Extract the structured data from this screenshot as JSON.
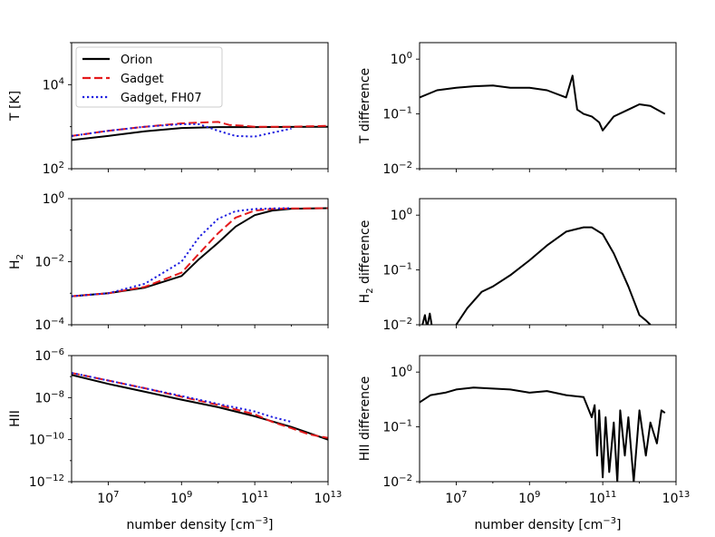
{
  "chart_data": [
    {
      "type": "line",
      "panel": "top-left",
      "ylabel": "T [K]",
      "xscale": "log",
      "yscale": "log",
      "xlim": [
        1000000.0,
        10000000000000.0
      ],
      "ylim": [
        100,
        100000
      ],
      "yticks": [
        100,
        10000
      ],
      "ytick_labels": [
        {
          "base": "10",
          "exp": "2"
        },
        {
          "base": "10",
          "exp": "4"
        }
      ],
      "xticks": [
        10000000.0,
        1000000000.0,
        100000000000.0,
        10000000000000.0
      ],
      "show_xticklabels": false,
      "legend": {
        "position": "top-left",
        "entries": [
          {
            "label": "Orion",
            "color": "#000000",
            "style": "solid"
          },
          {
            "label": "Gadget",
            "color": "#e41a1c",
            "style": "dashed"
          },
          {
            "label": "Gadget, FH07",
            "color": "#1f1fe0",
            "style": "dotted"
          }
        ]
      },
      "series": [
        {
          "name": "Orion",
          "color": "#000000",
          "style": "solid",
          "x": [
            1000000.0,
            10000000.0,
            100000000.0,
            1000000000.0,
            10000000000.0,
            100000000000.0,
            1000000000000.0,
            10000000000000.0
          ],
          "y": [
            480,
            600,
            780,
            930,
            980,
            980,
            990,
            1000
          ]
        },
        {
          "name": "Gadget",
          "color": "#e41a1c",
          "style": "dashed",
          "x": [
            1000000.0,
            10000000.0,
            100000000.0,
            1000000000.0,
            3000000000.0,
            10000000000.0,
            20000000000.0,
            50000000000.0,
            100000000000.0,
            1000000000000.0,
            10000000000000.0
          ],
          "y": [
            600,
            800,
            1000,
            1200,
            1250,
            1300,
            1100,
            1050,
            1000,
            1000,
            1050
          ]
        },
        {
          "name": "Gadget, FH07",
          "color": "#1f1fe0",
          "style": "dotted",
          "x": [
            1000000.0,
            10000000.0,
            100000000.0,
            1000000000.0,
            3000000000.0,
            10000000000.0,
            30000000000.0,
            100000000000.0,
            300000000000.0,
            1000000000000.0
          ],
          "y": [
            600,
            800,
            1000,
            1150,
            1150,
            800,
            600,
            580,
            720,
            900
          ]
        }
      ]
    },
    {
      "type": "line",
      "panel": "top-right",
      "ylabel": "T difference",
      "xscale": "log",
      "yscale": "log",
      "xlim": [
        1000000.0,
        10000000000000.0
      ],
      "ylim": [
        0.01,
        2
      ],
      "yticks": [
        0.01,
        0.1,
        1
      ],
      "ytick_labels": [
        {
          "base": "10",
          "exp": "−2"
        },
        {
          "base": "10",
          "exp": "−1"
        },
        {
          "base": "10",
          "exp": "0"
        }
      ],
      "xticks": [
        10000000.0,
        1000000000.0,
        100000000000.0,
        10000000000000.0
      ],
      "show_xticklabels": false,
      "series": [
        {
          "name": "T difference",
          "color": "#000000",
          "style": "solid",
          "x": [
            1000000.0,
            3000000.0,
            10000000.0,
            30000000.0,
            100000000.0,
            300000000.0,
            1000000000.0,
            3000000000.0,
            10000000000.0,
            15000000000.0,
            20000000000.0,
            30000000000.0,
            50000000000.0,
            80000000000.0,
            100000000000.0,
            200000000000.0,
            500000000000.0,
            1000000000000.0,
            2000000000000.0,
            3000000000000.0,
            5000000000000.0
          ],
          "y": [
            0.2,
            0.27,
            0.3,
            0.32,
            0.33,
            0.3,
            0.3,
            0.27,
            0.2,
            0.5,
            0.12,
            0.1,
            0.09,
            0.07,
            0.05,
            0.09,
            0.12,
            0.15,
            0.14,
            0.12,
            0.1
          ]
        }
      ]
    },
    {
      "type": "line",
      "panel": "middle-left",
      "ylabel": {
        "base": "H",
        "sub": "2"
      },
      "xscale": "log",
      "yscale": "log",
      "xlim": [
        1000000.0,
        10000000000000.0
      ],
      "ylim": [
        0.0001,
        1
      ],
      "yticks": [
        0.0001,
        0.01,
        1
      ],
      "ytick_labels": [
        {
          "base": "10",
          "exp": "−4"
        },
        {
          "base": "10",
          "exp": "−2"
        },
        {
          "base": "10",
          "exp": "0"
        }
      ],
      "xticks": [
        10000000.0,
        1000000000.0,
        100000000000.0,
        10000000000000.0
      ],
      "show_xticklabels": false,
      "series": [
        {
          "name": "Orion",
          "color": "#000000",
          "style": "solid",
          "x": [
            1000000.0,
            10000000.0,
            100000000.0,
            1000000000.0,
            3000000000.0,
            10000000000.0,
            30000000000.0,
            100000000000.0,
            300000000000.0,
            1000000000000.0,
            10000000000000.0
          ],
          "y": [
            0.0008,
            0.001,
            0.0015,
            0.0035,
            0.012,
            0.04,
            0.13,
            0.3,
            0.42,
            0.48,
            0.5
          ]
        },
        {
          "name": "Gadget",
          "color": "#e41a1c",
          "style": "dashed",
          "x": [
            1000000.0,
            10000000.0,
            100000000.0,
            1000000000.0,
            3000000000.0,
            10000000000.0,
            30000000000.0,
            100000000000.0,
            300000000000.0,
            1000000000000.0,
            10000000000000.0
          ],
          "y": [
            0.0008,
            0.001,
            0.0016,
            0.0045,
            0.018,
            0.08,
            0.25,
            0.42,
            0.47,
            0.49,
            0.5
          ]
        },
        {
          "name": "Gadget, FH07",
          "color": "#1f1fe0",
          "style": "dotted",
          "x": [
            1000000.0,
            10000000.0,
            100000000.0,
            1000000000.0,
            3000000000.0,
            10000000000.0,
            30000000000.0,
            100000000000.0,
            300000000000.0,
            1000000000000.0
          ],
          "y": [
            0.0008,
            0.001,
            0.002,
            0.01,
            0.06,
            0.23,
            0.4,
            0.47,
            0.49,
            0.5
          ]
        }
      ]
    },
    {
      "type": "line",
      "panel": "middle-right",
      "ylabel": {
        "base": "H",
        "sub": "2",
        "rest": " difference"
      },
      "xscale": "log",
      "yscale": "log",
      "xlim": [
        1000000.0,
        10000000000000.0
      ],
      "ylim": [
        0.01,
        2
      ],
      "yticks": [
        0.01,
        0.1,
        1
      ],
      "ytick_labels": [
        {
          "base": "10",
          "exp": "−2"
        },
        {
          "base": "10",
          "exp": "−1"
        },
        {
          "base": "10",
          "exp": "0"
        }
      ],
      "xticks": [
        10000000.0,
        1000000000.0,
        100000000000.0,
        10000000000000.0
      ],
      "show_xticklabels": false,
      "series": [
        {
          "name": "H2 difference",
          "color": "#000000",
          "style": "solid",
          "x": [
            1200000.0,
            1400000.0,
            1600000.0,
            1900000.0,
            2200000.0
          ],
          "y": [
            0.01,
            0.015,
            0.009,
            0.016,
            0.009
          ]
        },
        {
          "name": "H2 difference (main)",
          "color": "#000000",
          "style": "solid",
          "x": [
            10000000.0,
            20000000.0,
            50000000.0,
            100000000.0,
            300000000.0,
            1000000000.0,
            3000000000.0,
            10000000000.0,
            30000000000.0,
            50000000000.0,
            100000000000.0,
            200000000000.0,
            500000000000.0,
            1000000000000.0,
            1500000000000.0,
            2000000000000.0
          ],
          "y": [
            0.01,
            0.02,
            0.04,
            0.05,
            0.08,
            0.15,
            0.28,
            0.5,
            0.6,
            0.6,
            0.45,
            0.2,
            0.05,
            0.015,
            0.012,
            0.01
          ]
        }
      ]
    },
    {
      "type": "line",
      "panel": "bottom-left",
      "ylabel": "HII",
      "xlabel": "number density [cm^-3]",
      "xscale": "log",
      "yscale": "log",
      "xlim": [
        1000000.0,
        10000000000000.0
      ],
      "ylim": [
        1e-12,
        1e-06
      ],
      "yticks": [
        1e-12,
        1e-10,
        1e-08,
        1e-06
      ],
      "ytick_labels": [
        {
          "base": "10",
          "exp": "−12"
        },
        {
          "base": "10",
          "exp": "−10"
        },
        {
          "base": "10",
          "exp": "−8"
        },
        {
          "base": "10",
          "exp": "−6"
        }
      ],
      "xticks": [
        10000000.0,
        1000000000.0,
        100000000000.0,
        10000000000000.0
      ],
      "xtick_labels": [
        {
          "base": "10",
          "exp": "7"
        },
        {
          "base": "10",
          "exp": "9"
        },
        {
          "base": "10",
          "exp": "11"
        },
        {
          "base": "10",
          "exp": "13"
        }
      ],
      "show_xticklabels": true,
      "series": [
        {
          "name": "Orion",
          "color": "#000000",
          "style": "solid",
          "x": [
            1000000.0,
            10000000.0,
            100000000.0,
            1000000000.0,
            10000000000.0,
            100000000000.0,
            1000000000000.0,
            10000000000000.0
          ],
          "y": [
            1.2e-07,
            4.5e-08,
            1.9e-08,
            8e-09,
            3.5e-09,
            1.3e-09,
            4e-10,
            1e-10
          ]
        },
        {
          "name": "Gadget",
          "color": "#e41a1c",
          "style": "dashed",
          "x": [
            1000000.0,
            10000000.0,
            100000000.0,
            1000000000.0,
            10000000000.0,
            100000000000.0,
            300000000000.0,
            1000000000000.0,
            3000000000000.0,
            10000000000000.0
          ],
          "y": [
            1.5e-07,
            6.5e-08,
            2.8e-08,
            1.1e-08,
            4.5e-09,
            1.6e-09,
            7e-10,
            3.5e-10,
            1.8e-10,
            1.2e-10
          ]
        },
        {
          "name": "Gadget, FH07",
          "color": "#1f1fe0",
          "style": "dotted",
          "x": [
            1000000.0,
            10000000.0,
            100000000.0,
            1000000000.0,
            10000000000.0,
            100000000000.0,
            300000000000.0,
            1000000000000.0
          ],
          "y": [
            1.5e-07,
            6.5e-08,
            2.8e-08,
            1.2e-08,
            5e-09,
            2.2e-09,
            1.2e-09,
            7e-10
          ]
        }
      ]
    },
    {
      "type": "line",
      "panel": "bottom-right",
      "ylabel": "HII difference",
      "xlabel": "number density [cm^-3]",
      "xscale": "log",
      "yscale": "log",
      "xlim": [
        1000000.0,
        10000000000000.0
      ],
      "ylim": [
        0.01,
        2
      ],
      "yticks": [
        0.01,
        0.1,
        1
      ],
      "ytick_labels": [
        {
          "base": "10",
          "exp": "−2"
        },
        {
          "base": "10",
          "exp": "−1"
        },
        {
          "base": "10",
          "exp": "0"
        }
      ],
      "xticks": [
        10000000.0,
        1000000000.0,
        100000000000.0,
        10000000000000.0
      ],
      "xtick_labels": [
        {
          "base": "10",
          "exp": "7"
        },
        {
          "base": "10",
          "exp": "9"
        },
        {
          "base": "10",
          "exp": "11"
        },
        {
          "base": "10",
          "exp": "13"
        }
      ],
      "show_xticklabels": true,
      "series": [
        {
          "name": "HII difference",
          "color": "#000000",
          "style": "solid",
          "x": [
            1000000.0,
            2000000.0,
            5000000.0,
            10000000.0,
            30000000.0,
            100000000.0,
            300000000.0,
            1000000000.0,
            3000000000.0,
            10000000000.0,
            30000000000.0,
            50000000000.0,
            60000000000.0,
            70000000000.0,
            80000000000.0,
            100000000000.0,
            120000000000.0,
            150000000000.0,
            200000000000.0,
            250000000000.0,
            300000000000.0,
            400000000000.0,
            500000000000.0,
            700000000000.0,
            1000000000000.0,
            1500000000000.0,
            2000000000000.0,
            3000000000000.0,
            4000000000000.0,
            5000000000000.0
          ],
          "y": [
            0.28,
            0.38,
            0.42,
            0.48,
            0.52,
            0.5,
            0.48,
            0.42,
            0.45,
            0.38,
            0.35,
            0.15,
            0.25,
            0.03,
            0.2,
            0.012,
            0.15,
            0.015,
            0.12,
            0.01,
            0.2,
            0.03,
            0.15,
            0.01,
            0.2,
            0.03,
            0.12,
            0.05,
            0.2,
            0.18
          ]
        }
      ]
    }
  ]
}
